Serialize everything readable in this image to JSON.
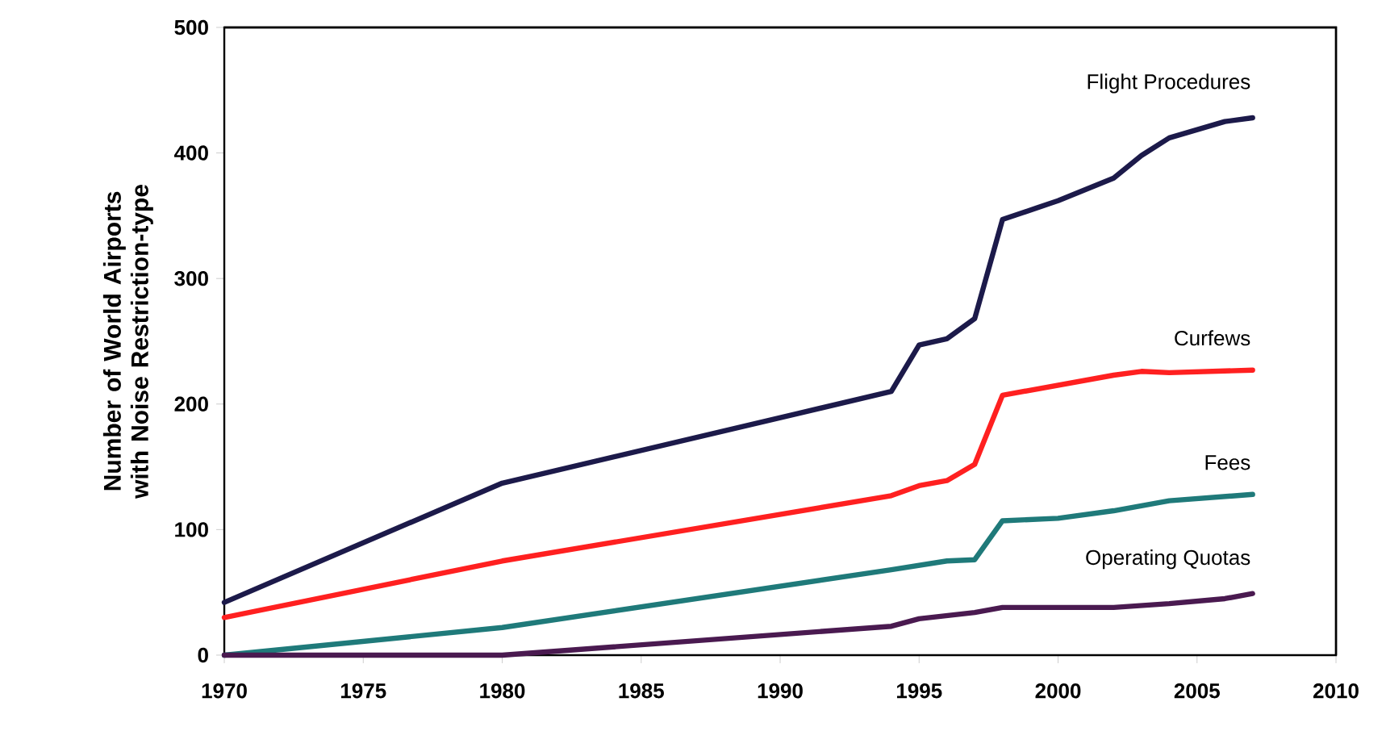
{
  "chart_data": {
    "type": "line",
    "ylabel": "Number of World Airports with Noise Restriction-type",
    "xlim": [
      1970,
      2010
    ],
    "xticks": [
      1970,
      1975,
      1980,
      1985,
      1990,
      1995,
      2000,
      2005,
      2010
    ],
    "ylim": [
      0,
      500
    ],
    "yticks": [
      0,
      100,
      200,
      300,
      400,
      500
    ],
    "grid": false,
    "legend": false,
    "marker": "none",
    "line_style": "solid",
    "series": [
      {
        "name": "Flight Procedures",
        "color": "#1c1a4a",
        "x": [
          1970,
          1980,
          1994,
          1995,
          1996,
          1997,
          1998,
          2000,
          2002,
          2003,
          2004,
          2006,
          2007
        ],
        "values": [
          42,
          137,
          210,
          247,
          252,
          268,
          347,
          362,
          380,
          398,
          412,
          425,
          428
        ]
      },
      {
        "name": "Curfews",
        "color": "#ff2020",
        "x": [
          1970,
          1980,
          1994,
          1995,
          1996,
          1997,
          1998,
          2000,
          2002,
          2003,
          2004,
          2007
        ],
        "values": [
          30,
          75,
          127,
          135,
          139,
          152,
          207,
          215,
          223,
          226,
          225,
          227
        ]
      },
      {
        "name": "Fees",
        "color": "#1f7a7a",
        "x": [
          1970,
          1980,
          1994,
          1996,
          1997,
          1998,
          2000,
          2002,
          2004,
          2007
        ],
        "values": [
          0,
          22,
          68,
          75,
          76,
          107,
          109,
          115,
          123,
          128
        ]
      },
      {
        "name": "Operating Quotas",
        "color": "#4a1a50",
        "x": [
          1970,
          1980,
          1994,
          1995,
          1997,
          1998,
          2002,
          2004,
          2006,
          2007
        ],
        "values": [
          0,
          0,
          23,
          29,
          34,
          38,
          38,
          41,
          45,
          49
        ]
      }
    ]
  }
}
